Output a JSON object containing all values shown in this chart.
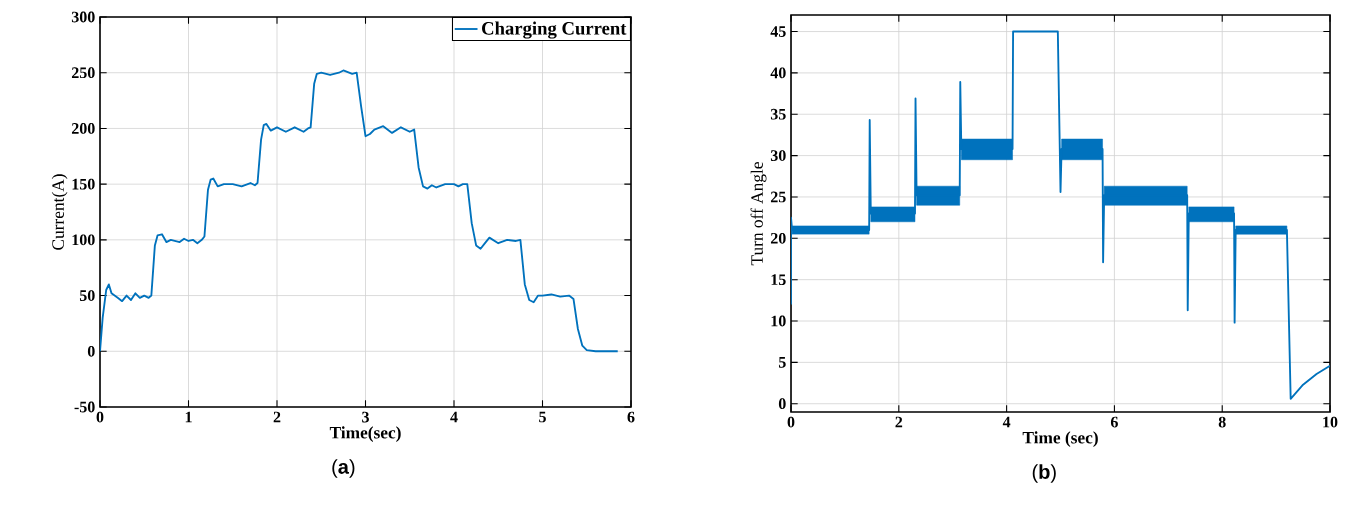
{
  "chart_data": [
    {
      "type": "line",
      "xlabel": "Time(sec)",
      "ylabel": "Current(A)",
      "xlim": [
        0,
        6
      ],
      "ylim": [
        -50,
        300
      ],
      "xticks": [
        0,
        1,
        2,
        3,
        4,
        5,
        6
      ],
      "yticks": [
        -50,
        0,
        50,
        100,
        150,
        200,
        250,
        300
      ],
      "grid": true,
      "legend": "top right",
      "annotations": [
        "(**a**)"
      ],
      "x": [
        0,
        0.03,
        0.07,
        0.1,
        0.13,
        0.2,
        0.25,
        0.3,
        0.35,
        0.4,
        0.45,
        0.5,
        0.55,
        0.58,
        0.62,
        0.65,
        0.7,
        0.75,
        0.8,
        0.9,
        0.95,
        1.0,
        1.05,
        1.1,
        1.15,
        1.18,
        1.22,
        1.25,
        1.28,
        1.33,
        1.4,
        1.5,
        1.6,
        1.7,
        1.75,
        1.78,
        1.82,
        1.85,
        1.88,
        1.93,
        2.0,
        2.1,
        2.2,
        2.3,
        2.35,
        2.38,
        2.42,
        2.45,
        2.5,
        2.6,
        2.7,
        2.75,
        2.85,
        2.9,
        2.95,
        3.0,
        3.05,
        3.1,
        3.2,
        3.3,
        3.4,
        3.5,
        3.55,
        3.6,
        3.65,
        3.7,
        3.75,
        3.8,
        3.9,
        4.0,
        4.05,
        4.1,
        4.15,
        4.2,
        4.25,
        4.3,
        4.35,
        4.4,
        4.5,
        4.6,
        4.7,
        4.75,
        4.8,
        4.85,
        4.9,
        4.95,
        5.0,
        5.1,
        5.2,
        5.3,
        5.35,
        5.4,
        5.45,
        5.5,
        5.6,
        5.85
      ],
      "series": [
        {
          "name": "Charging Current",
          "color": "#0072bd",
          "values": [
            0,
            30,
            55,
            60,
            52,
            48,
            45,
            50,
            46,
            52,
            48,
            50,
            48,
            50,
            95,
            104,
            105,
            98,
            100,
            98,
            101,
            99,
            100,
            97,
            100,
            103,
            145,
            154,
            155,
            148,
            150,
            150,
            148,
            151,
            149,
            151,
            190,
            203,
            204,
            198,
            201,
            197,
            201,
            197,
            200,
            201,
            240,
            249,
            250,
            248,
            250,
            252,
            249,
            250,
            220,
            193,
            195,
            199,
            202,
            196,
            201,
            197,
            199,
            165,
            148,
            146,
            149,
            147,
            150,
            150,
            148,
            150,
            150,
            115,
            95,
            92,
            97,
            102,
            97,
            100,
            99,
            100,
            60,
            46,
            44,
            50,
            50,
            51,
            49,
            50,
            47,
            20,
            5,
            1,
            0,
            0
          ]
        }
      ]
    },
    {
      "type": "line",
      "xlabel": "Time (sec)",
      "ylabel": "Turn off Angle",
      "xlim": [
        0,
        10
      ],
      "ylim": [
        -1,
        47
      ],
      "xticks": [
        0,
        2,
        4,
        6,
        8,
        10
      ],
      "yticks": [
        0,
        5,
        10,
        15,
        20,
        25,
        30,
        35,
        40,
        45
      ],
      "grid": true,
      "annotations": [
        "(**b**)"
      ],
      "x": [
        0,
        0,
        0.02,
        1.45,
        1.46,
        1.48,
        2.3,
        2.31,
        2.33,
        3.13,
        3.14,
        3.16,
        4.11,
        4.12,
        4.95,
        5.0,
        5.02,
        5.78,
        5.79,
        5.81,
        7.35,
        7.36,
        7.38,
        8.22,
        8.23,
        8.25,
        9.2,
        9.27,
        9.5,
        9.75,
        10
      ],
      "series": [
        {
          "color": "#0072bd",
          "values": [
            12,
            22.5,
            21,
            21,
            34.3,
            23,
            23,
            36.9,
            25.2,
            25.2,
            38.9,
            30.8,
            30.8,
            45,
            45,
            25.6,
            30.8,
            30.8,
            17.1,
            25.2,
            25.2,
            11.3,
            23,
            23,
            9.8,
            21,
            21,
            0.6,
            2.3,
            3.6,
            4.6
          ],
          "lower": [
            null,
            null,
            20.5,
            20.5,
            null,
            22,
            22,
            null,
            24,
            24,
            null,
            29.5,
            29.5,
            null,
            null,
            null,
            29.5,
            29.5,
            null,
            24,
            24,
            null,
            22,
            22,
            null,
            20.5,
            20.5,
            null,
            null,
            null,
            null
          ],
          "upper": [
            null,
            null,
            21.5,
            21.5,
            null,
            23.8,
            23.8,
            null,
            26.3,
            26.3,
            null,
            32,
            32,
            null,
            null,
            null,
            32,
            32,
            null,
            26.3,
            26.3,
            null,
            23.8,
            23.8,
            null,
            21.5,
            21.5,
            null,
            null,
            null,
            null
          ]
        }
      ]
    }
  ]
}
